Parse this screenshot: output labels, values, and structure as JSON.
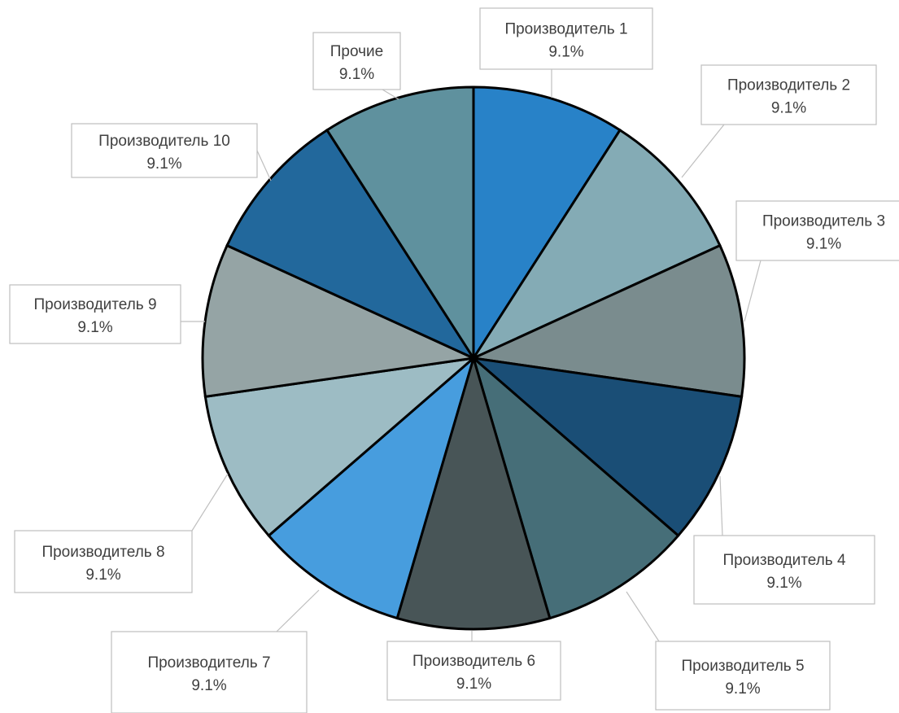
{
  "chart_data": {
    "type": "pie",
    "title": "",
    "slices": [
      {
        "label": "Производитель 1",
        "value": 9.1,
        "pct": "9.1%",
        "color": "#2882C8"
      },
      {
        "label": "Производитель 2",
        "value": 9.1,
        "pct": "9.1%",
        "color": "#84ABB5"
      },
      {
        "label": "Производитель 3",
        "value": 9.1,
        "pct": "9.1%",
        "color": "#7A8C8E"
      },
      {
        "label": "Производитель 4",
        "value": 9.1,
        "pct": "9.1%",
        "color": "#1A4E76"
      },
      {
        "label": "Производитель 5",
        "value": 9.1,
        "pct": "9.1%",
        "color": "#466E78"
      },
      {
        "label": "Производитель 6",
        "value": 9.1,
        "pct": "9.1%",
        "color": "#485557"
      },
      {
        "label": "Производитель 7",
        "value": 9.1,
        "pct": "9.1%",
        "color": "#479DDE"
      },
      {
        "label": "Производитель 8",
        "value": 9.1,
        "pct": "9.1%",
        "color": "#9DBCC4"
      },
      {
        "label": "Производитель 9",
        "value": 9.1,
        "pct": "9.1%",
        "color": "#95A4A5"
      },
      {
        "label": "Производитель 10",
        "value": 9.1,
        "pct": "9.1%",
        "color": "#22689C"
      },
      {
        "label": "Прочие",
        "value": 9.1,
        "pct": "9.1%",
        "color": "#5F919E"
      }
    ]
  }
}
